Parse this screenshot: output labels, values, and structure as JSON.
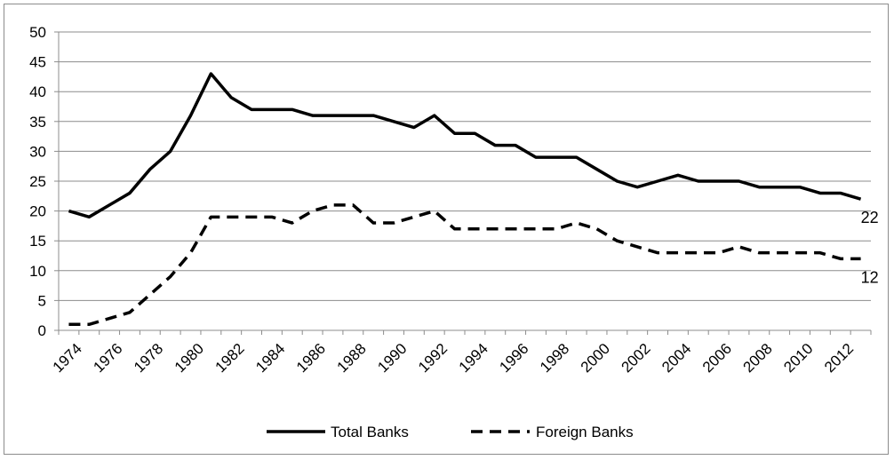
{
  "chart_data": {
    "type": "line",
    "title": "",
    "xlabel": "",
    "ylabel": "",
    "ylim": [
      0,
      50
    ],
    "yticks": [
      0,
      5,
      10,
      15,
      20,
      25,
      30,
      35,
      40,
      45,
      50
    ],
    "x": [
      1974,
      1975,
      1976,
      1977,
      1978,
      1979,
      1980,
      1981,
      1982,
      1983,
      1984,
      1985,
      1986,
      1987,
      1988,
      1989,
      1990,
      1991,
      1992,
      1993,
      1994,
      1995,
      1996,
      1997,
      1998,
      1999,
      2000,
      2001,
      2002,
      2003,
      2004,
      2005,
      2006,
      2007,
      2008,
      2009,
      2010,
      2011,
      2012,
      2013
    ],
    "xtick_labels": [
      "1974",
      "1976",
      "1978",
      "1980",
      "1982",
      "1984",
      "1986",
      "1988",
      "1990",
      "1992",
      "1994",
      "1996",
      "1998",
      "2000",
      "2002",
      "2004",
      "2006",
      "2008",
      "2010",
      "2012"
    ],
    "grid": true,
    "legend_position": "bottom",
    "series": [
      {
        "name": "Total Banks",
        "style": "solid",
        "color": "#000000",
        "values": [
          20,
          19,
          21,
          23,
          27,
          30,
          36,
          43,
          39,
          37,
          37,
          37,
          36,
          36,
          36,
          36,
          35,
          34,
          36,
          33,
          33,
          31,
          31,
          29,
          29,
          29,
          27,
          25,
          24,
          25,
          26,
          25,
          25,
          25,
          24,
          24,
          24,
          23,
          23,
          22
        ],
        "end_label": "22"
      },
      {
        "name": "Foreign Banks",
        "style": "dashed",
        "color": "#000000",
        "values": [
          1,
          1,
          2,
          3,
          6,
          9,
          13,
          19,
          19,
          19,
          19,
          18,
          20,
          21,
          21,
          18,
          18,
          19,
          20,
          17,
          17,
          17,
          17,
          17,
          17,
          18,
          17,
          15,
          14,
          13,
          13,
          13,
          13,
          14,
          13,
          13,
          13,
          13,
          12,
          12
        ],
        "end_label": "12"
      }
    ]
  }
}
